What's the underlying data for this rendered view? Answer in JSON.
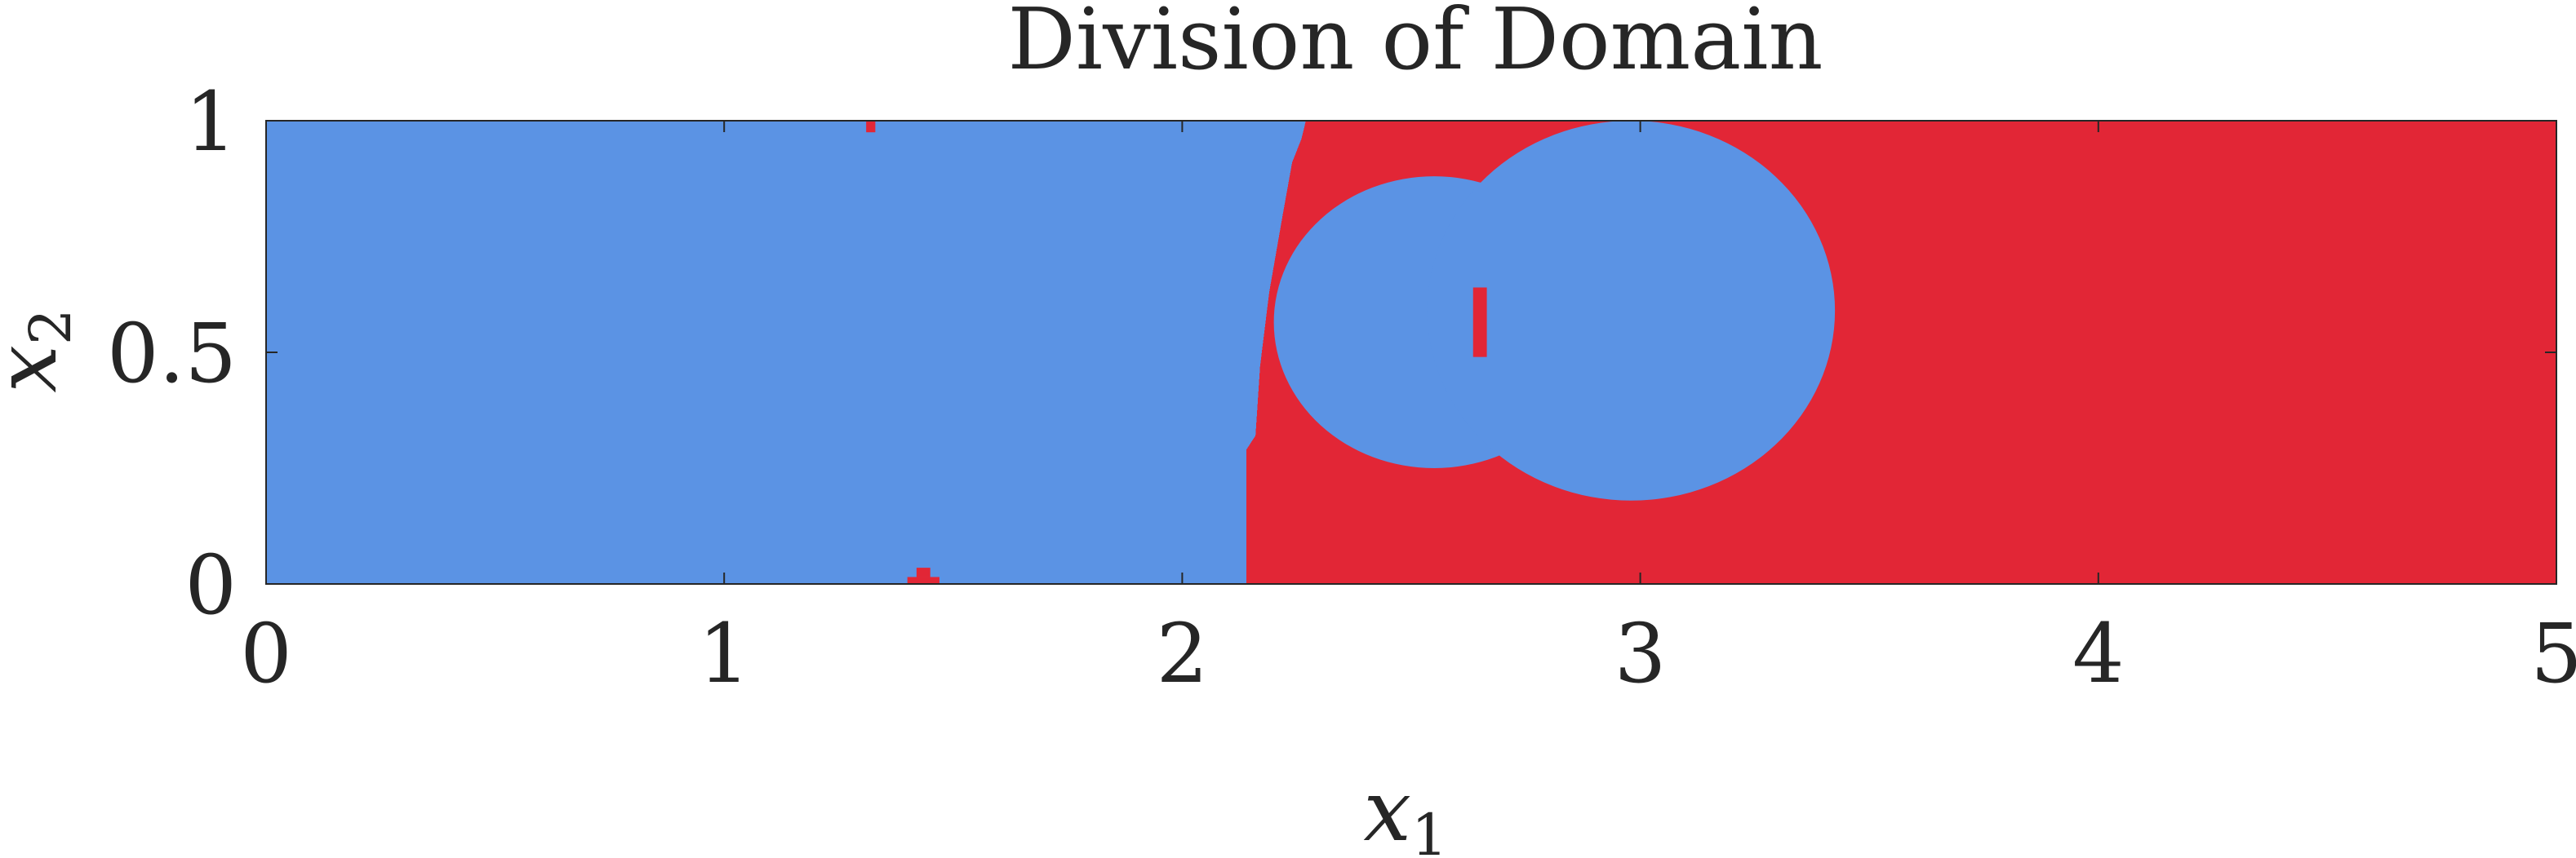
{
  "chart_data": {
    "type": "heatmap",
    "title": "Division of Domain",
    "xlabel": "x",
    "xlabel_subscript": "1",
    "ylabel": "x",
    "ylabel_subscript": "2",
    "xlim": [
      0,
      5
    ],
    "ylim": [
      0,
      1
    ],
    "x_ticks": [
      0,
      1,
      2,
      3,
      4,
      5
    ],
    "x_tick_labels": [
      "0",
      "1",
      "2",
      "3",
      "4",
      "5"
    ],
    "y_ticks": [
      0,
      0.5,
      1
    ],
    "y_tick_labels": [
      "0",
      "0.5",
      "1"
    ],
    "grid": false,
    "legend": "none",
    "colors": {
      "subdomain_blue": "#5b93e4",
      "subdomain_red": "#e22636"
    },
    "subdomain_blue_regions": [
      {
        "shape": "polygon",
        "points": [
          [
            0,
            0
          ],
          [
            2.14,
            0
          ],
          [
            2.14,
            0.29
          ],
          [
            2.16,
            0.32
          ],
          [
            2.17,
            0.47
          ],
          [
            2.19,
            0.63
          ],
          [
            2.22,
            0.8
          ],
          [
            2.24,
            0.91
          ],
          [
            2.26,
            0.96
          ],
          [
            2.27,
            1.0
          ],
          [
            0,
            1.0
          ]
        ]
      },
      {
        "shape": "ellipse",
        "cx": 2.55,
        "cy": 0.565,
        "rx": 0.35,
        "ry": 0.315
      },
      {
        "shape": "ellipse",
        "cx": 2.98,
        "cy": 0.59,
        "rx": 0.445,
        "ry": 0.41
      }
    ],
    "subdomain_red_specks": [
      {
        "x": [
          1.31,
          1.33
        ],
        "y": [
          0.975,
          1.0
        ]
      },
      {
        "x": [
          1.4,
          1.47
        ],
        "y": [
          0.0,
          0.015
        ]
      },
      {
        "x": [
          1.42,
          1.45
        ],
        "y": [
          0.015,
          0.035
        ]
      },
      {
        "x": [
          2.635,
          2.665
        ],
        "y": [
          0.49,
          0.64
        ]
      }
    ]
  }
}
